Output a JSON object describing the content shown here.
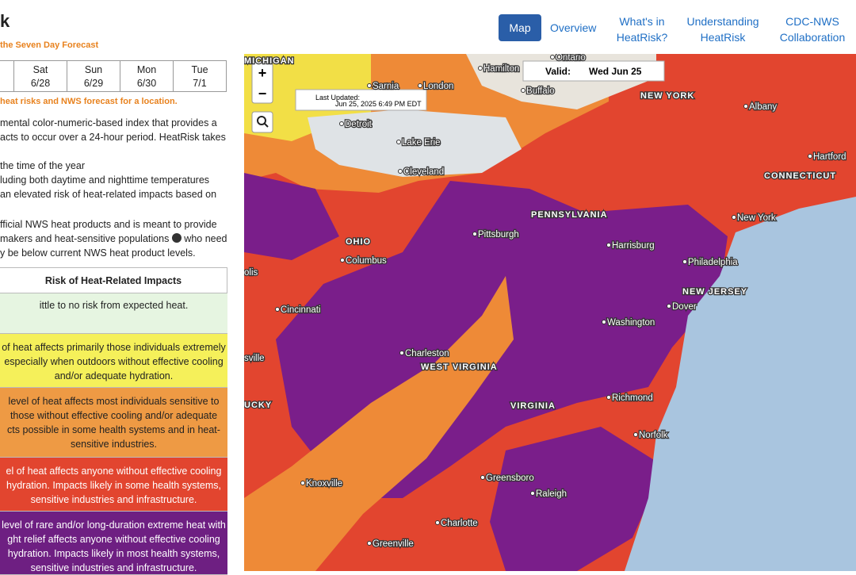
{
  "header": {
    "title": "k",
    "subtitle": "the Seven Day Forecast"
  },
  "nav": [
    "Map",
    "Overview",
    "What's in HeatRisk?",
    "Understanding HeatRisk",
    "CDC-NWS Collaboration"
  ],
  "days": [
    {
      "day": "Sat",
      "date": "6/28"
    },
    {
      "day": "Sun",
      "date": "6/29"
    },
    {
      "day": "Mon",
      "date": "6/30"
    },
    {
      "day": "Tue",
      "date": "7/1"
    }
  ],
  "hint": "heat risks and NWS forecast for a location.",
  "intro": [
    "mental color-numeric-based index that provides a",
    "acts to occur over a 24-hour period. HeatRisk takes"
  ],
  "bullets": [
    "the time of the year",
    "luding both daytime and nighttime temperatures",
    "an elevated risk of heat-related impacts based on"
  ],
  "outro": [
    "fficial NWS heat products and is meant to provide",
    "makers and heat-sensitive populations",
    "who need",
    "y be below current NWS heat product levels."
  ],
  "table": {
    "header": "Risk of Heat-Related Impacts",
    "rows": [
      [
        "ittle to no risk from expected heat."
      ],
      [
        "of heat affects primarily those individuals extremely",
        "especially when outdoors without effective cooling",
        "and/or adequate hydration."
      ],
      [
        "level of heat affects most individuals sensitive to",
        "those without effective cooling and/or adequate",
        "cts possible in some health systems and in heat-",
        "sensitive industries."
      ],
      [
        "el of heat affects anyone without effective cooling",
        "hydration. Impacts likely in some health systems,",
        "sensitive industries and infrastructure."
      ],
      [
        "level of rare and/or long-duration extreme heat with",
        "ght relief affects anyone without effective cooling",
        "hydration. Impacts likely in most health systems,",
        "sensitive industries and infrastructure."
      ]
    ]
  },
  "map": {
    "valid_label": "Valid:",
    "valid_date": "Wed Jun 25",
    "updated_label": "Last Updated:",
    "updated_time": "Jun 25, 2025 6:49 PM EDT",
    "zoom_in": "+",
    "zoom_out": "−",
    "labels": [
      "MICHIGAN",
      "Ontario",
      "Hamilton",
      "Sarnia",
      "London",
      "Buffalo",
      "NEW YORK",
      "Albany",
      "Detroit",
      "Lake Erie",
      "Cleveland",
      "Hartford",
      "CONNECTICUT",
      "PENNSYLVANIA",
      "New York",
      "Pittsburgh",
      "Harrisburg",
      "OHIO",
      "Columbus",
      "Philadelphia",
      "olis",
      "NEW JERSEY",
      "Cincinnati",
      "Dover",
      "Washington",
      "sville",
      "Charleston",
      "WEST VIRGINIA",
      "Richmond",
      "UCKY",
      "VIRGINIA",
      "Norfolk",
      "Knoxville",
      "Greensboro",
      "Raleigh",
      "Charlotte",
      "Greenville"
    ]
  }
}
